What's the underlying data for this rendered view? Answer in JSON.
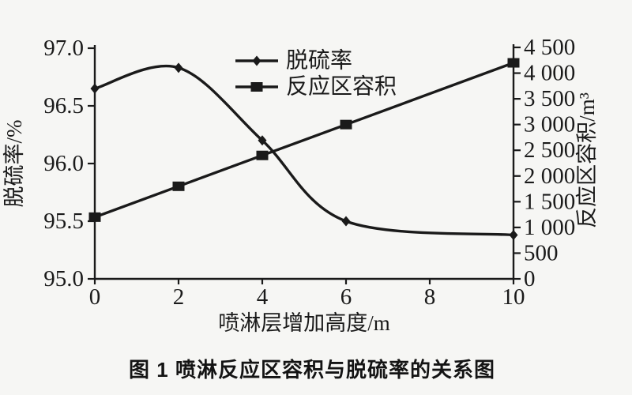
{
  "figure": {
    "caption": "图 1  喷淋反应区容积与脱硫率的关系图"
  },
  "chart_data": {
    "type": "line",
    "title": "",
    "xlabel": "喷淋层增加高度/m",
    "x_ticks": [
      0,
      2,
      4,
      6,
      8,
      10
    ],
    "xlim": [
      0,
      10
    ],
    "grid": false,
    "line_color": "#1a1a1a",
    "background": "#f6f6f4",
    "axes": {
      "left": {
        "label": "脱硫率/%",
        "min": 95.0,
        "max": 97.0,
        "tick_step": 0.5,
        "tick_labels": [
          "95.0",
          "95.5",
          "96.0",
          "96.5",
          "97.0"
        ]
      },
      "right": {
        "label": "反应区容积/m³",
        "min": 0,
        "max": 4500,
        "tick_step": 500,
        "tick_labels": [
          "0",
          "500",
          "1 000",
          "1 500",
          "2 000",
          "2 500",
          "3 000",
          "3 500",
          "4 000",
          "4 500"
        ]
      }
    },
    "series": [
      {
        "id": "desulfurization-rate",
        "name": "脱硫率",
        "axis": "left",
        "marker": "diamond",
        "smooth": true,
        "x": [
          0,
          2,
          4,
          6,
          10
        ],
        "values": [
          96.65,
          96.83,
          96.2,
          95.5,
          95.38
        ]
      },
      {
        "id": "reaction-volume",
        "name": "反应区容积",
        "axis": "right",
        "marker": "square",
        "smooth": false,
        "x": [
          0,
          2,
          4,
          6,
          10
        ],
        "values": [
          1200,
          1800,
          2400,
          3000,
          4200
        ]
      }
    ],
    "legend": {
      "position": "inside-top-center"
    }
  }
}
